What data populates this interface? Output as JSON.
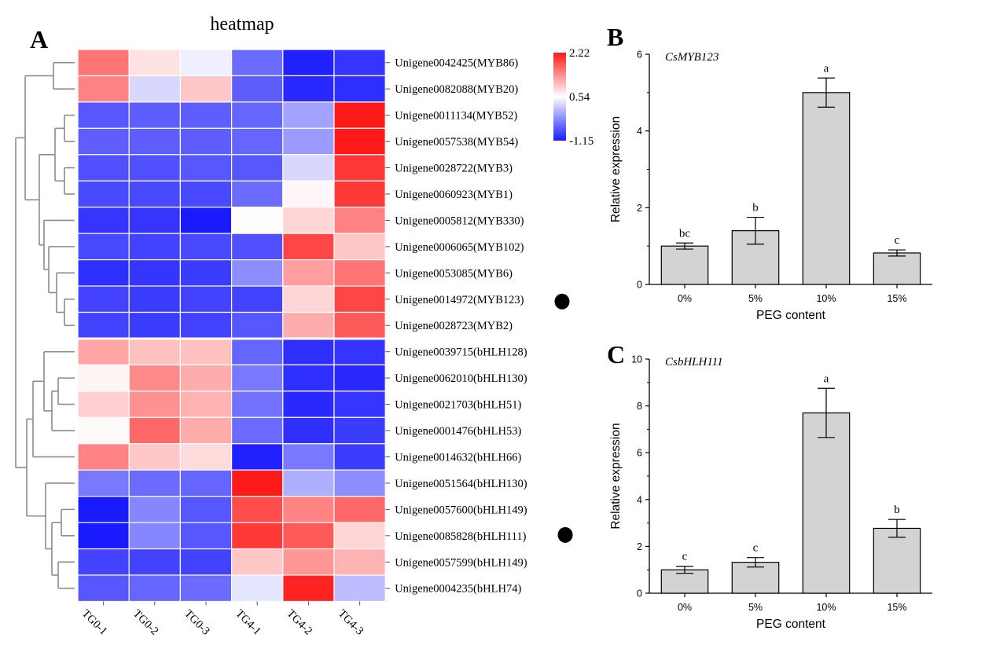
{
  "panels": {
    "a": "A",
    "b": "B",
    "c": "C"
  },
  "chart_data": [
    {
      "type": "heatmap",
      "title": "heatmap",
      "columns": [
        "TG0-1",
        "TG0-2",
        "TG0-3",
        "TG4-1",
        "TG4-2",
        "TG4-3"
      ],
      "rows": [
        "Unigene0042425(MYB86)",
        "Unigene0082088(MYB20)",
        "Unigene0011134(MYB52)",
        "Unigene0057538(MYB54)",
        "Unigene0028722(MYB3)",
        "Unigene0060923(MYB1)",
        "Unigene0005812(MYB330)",
        "Unigene0006065(MYB102)",
        "Unigene0053085(MYB6)",
        "Unigene0014972(MYB123)",
        "Unigene0028723(MYB2)",
        "Unigene0039715(bHLH128)",
        "Unigene0062010(bHLH130)",
        "Unigene0021703(bHLH51)",
        "Unigene0001476(bHLH53)",
        "Unigene0014632(bHLH66)",
        "Unigene0051564(bHLH130)",
        "Unigene0057600(bHLH149)",
        "Unigene0085828(bHLH111)",
        "Unigene0057599(bHLH149)",
        "Unigene0004235(bHLH74)"
      ],
      "values": [
        [
          1.55,
          0.75,
          0.42,
          -0.55,
          -1.1,
          -0.95
        ],
        [
          1.45,
          0.25,
          0.95,
          -0.65,
          -1.05,
          -1.0
        ],
        [
          -0.7,
          -0.65,
          -0.65,
          -0.6,
          -0.15,
          2.22
        ],
        [
          -0.65,
          -0.65,
          -0.65,
          -0.6,
          -0.2,
          2.22
        ],
        [
          -0.75,
          -0.75,
          -0.7,
          -0.7,
          0.25,
          2.0
        ],
        [
          -0.8,
          -0.8,
          -0.8,
          -0.55,
          0.6,
          2.0
        ],
        [
          -0.95,
          -0.95,
          -1.15,
          0.55,
          0.85,
          1.45
        ],
        [
          -0.8,
          -0.85,
          -0.8,
          -0.75,
          1.9,
          0.95
        ],
        [
          -1.0,
          -0.95,
          -0.9,
          -0.3,
          1.25,
          1.55
        ],
        [
          -0.85,
          -0.9,
          -0.85,
          -0.85,
          0.85,
          1.9
        ],
        [
          -0.85,
          -0.9,
          -0.85,
          -0.7,
          1.15,
          1.75
        ],
        [
          1.2,
          1.0,
          1.0,
          -0.6,
          -1.0,
          -0.95
        ],
        [
          0.62,
          1.4,
          1.15,
          -0.45,
          -1.0,
          -1.05
        ],
        [
          0.9,
          1.35,
          1.1,
          -0.5,
          -1.05,
          -0.95
        ],
        [
          0.58,
          1.65,
          1.15,
          -0.55,
          -1.0,
          -0.9
        ],
        [
          1.45,
          0.95,
          0.8,
          -1.1,
          -0.45,
          -0.9
        ],
        [
          -0.45,
          -0.55,
          -0.6,
          2.22,
          -0.05,
          -0.3
        ],
        [
          -1.15,
          -0.35,
          -0.7,
          1.85,
          1.45,
          1.65
        ],
        [
          -1.15,
          -0.35,
          -0.7,
          2.0,
          1.75,
          0.85
        ],
        [
          -0.85,
          -0.85,
          -0.85,
          0.95,
          1.3,
          1.1
        ],
        [
          -0.7,
          -0.6,
          -0.55,
          0.35,
          2.15,
          0.05
        ]
      ],
      "marked_rows": [
        "Unigene0014972(MYB123)",
        "Unigene0085828(bHLH111)"
      ],
      "color_scale": {
        "min": -1.15,
        "mid": 0.54,
        "max": 2.22,
        "min_label": "-1.15",
        "mid_label": "0.54",
        "max_label": "2.22",
        "low_color": "#1a1aff",
        "mid_color": "#ffffff",
        "high_color": "#ff1a1a"
      },
      "row_groups": [
        11,
        10
      ],
      "grid_color": "#ffffff"
    },
    {
      "type": "bar",
      "title": "CsMYB123",
      "xlabel": "PEG content",
      "ylabel": "Relative expression",
      "categories": [
        "0%",
        "5%",
        "10%",
        "15%"
      ],
      "values": [
        1.0,
        1.4,
        5.0,
        0.82
      ],
      "errors": [
        0.08,
        0.35,
        0.38,
        0.08
      ],
      "significance": [
        "bc",
        "b",
        "a",
        "c"
      ],
      "ylim": [
        0,
        6
      ],
      "yticks": [
        0,
        2,
        4,
        6
      ],
      "bar_color": "#d3d3d3"
    },
    {
      "type": "bar",
      "title": "CsbHLH111",
      "xlabel": "PEG content",
      "ylabel": "Relative expression",
      "categories": [
        "0%",
        "5%",
        "10%",
        "15%"
      ],
      "values": [
        1.0,
        1.32,
        7.7,
        2.77
      ],
      "errors": [
        0.15,
        0.2,
        1.05,
        0.38
      ],
      "significance": [
        "c",
        "c",
        "a",
        "b"
      ],
      "ylim": [
        0,
        10
      ],
      "yticks": [
        0,
        2,
        4,
        6,
        8,
        10
      ],
      "bar_color": "#d3d3d3"
    }
  ]
}
